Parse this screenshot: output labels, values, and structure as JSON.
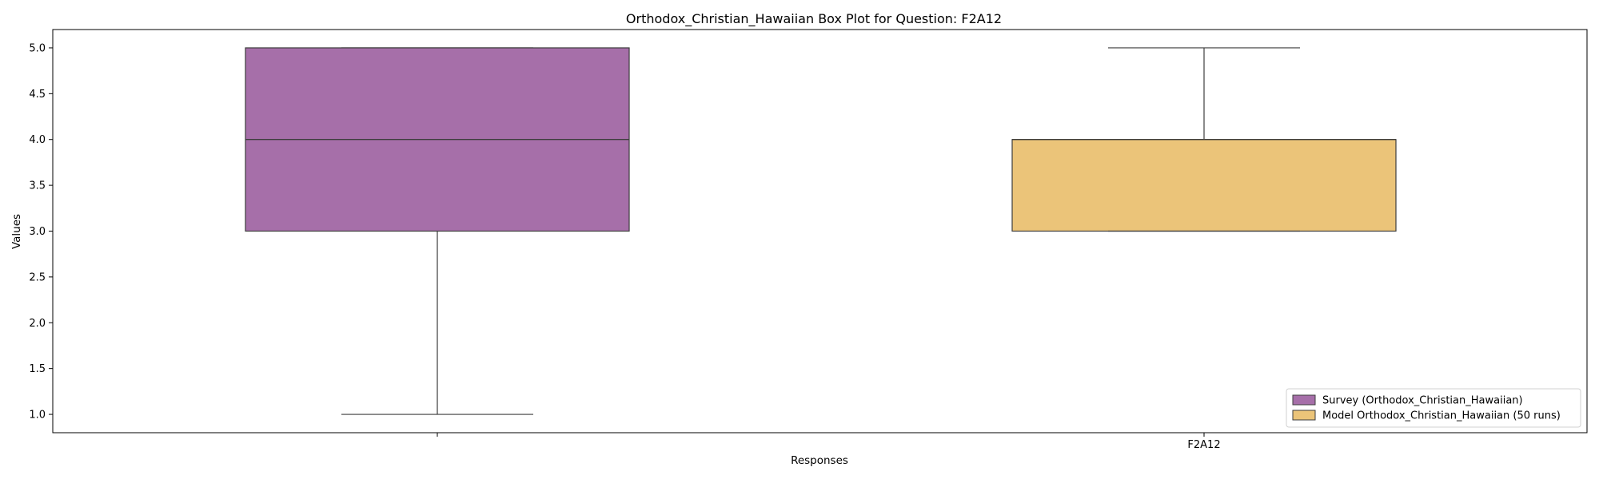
{
  "chart_data": {
    "type": "box",
    "title": "Orthodox_Christian_Hawaiian Box Plot for Question: F2A12",
    "xlabel": "Responses",
    "ylabel": "Values",
    "ylim": [
      0.8,
      5.2
    ],
    "yticks": [
      1.0,
      1.5,
      2.0,
      2.5,
      3.0,
      3.5,
      4.0,
      4.5,
      5.0
    ],
    "ytick_labels": [
      "1.0",
      "1.5",
      "2.0",
      "2.5",
      "3.0",
      "3.5",
      "4.0",
      "4.5",
      "5.0"
    ],
    "categories": [
      "",
      "F2A12"
    ],
    "grid": false,
    "legend_position": "lower-right",
    "series": [
      {
        "name": "Survey (Orthodox_Christian_Hawaiian)",
        "color": "#a66fa9",
        "whisker_low": 1.0,
        "q1": 3.0,
        "median": 4.0,
        "q3": 5.0,
        "whisker_high": 5.0
      },
      {
        "name": "Model Orthodox_Christian_Hawaiian (50 runs)",
        "color": "#ebc479",
        "whisker_low": 3.0,
        "q1": 3.0,
        "median": 4.0,
        "q3": 4.0,
        "whisker_high": 5.0
      }
    ]
  }
}
